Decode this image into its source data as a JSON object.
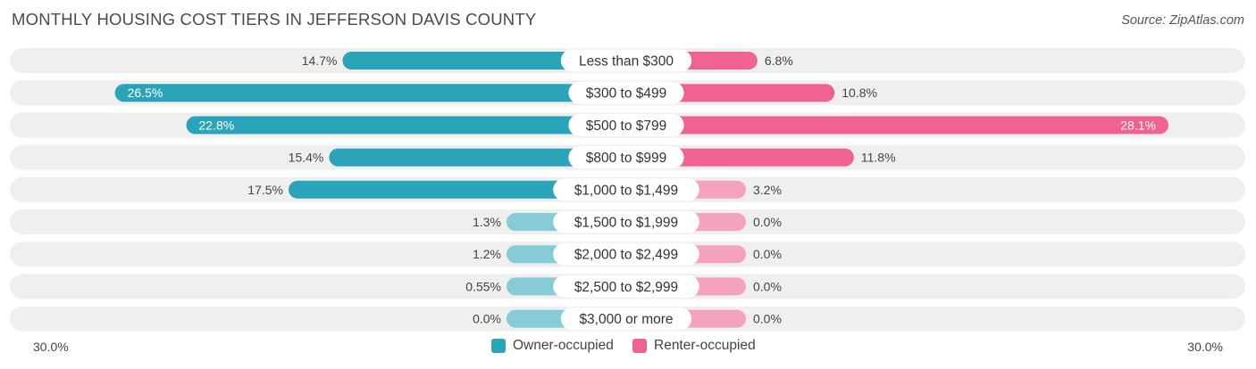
{
  "header": {
    "title": "MONTHLY HOUSING COST TIERS IN JEFFERSON DAVIS COUNTY",
    "source": "Source: ZipAtlas.com"
  },
  "colors": {
    "owner": "#2aa4b8",
    "owner_light": "#86cbd6",
    "renter": "#f0628f",
    "renter_light": "#f5a2bd",
    "row_bg": "#efefef"
  },
  "chart_data": {
    "type": "bar",
    "orientation": "horizontal-diverging",
    "title": "MONTHLY HOUSING COST TIERS IN JEFFERSON DAVIS COUNTY",
    "categories": [
      "Less than $300",
      "$300 to $499",
      "$500 to $799",
      "$800 to $999",
      "$1,000 to $1,499",
      "$1,500 to $1,999",
      "$2,000 to $2,499",
      "$2,500 to $2,999",
      "$3,000 or more"
    ],
    "series": [
      {
        "name": "Owner-occupied",
        "values": [
          14.7,
          26.5,
          22.8,
          15.4,
          17.5,
          1.3,
          1.2,
          0.55,
          0.0
        ],
        "labels": [
          "14.7%",
          "26.5%",
          "22.8%",
          "15.4%",
          "17.5%",
          "1.3%",
          "1.2%",
          "0.55%",
          "0.0%"
        ]
      },
      {
        "name": "Renter-occupied",
        "values": [
          6.8,
          10.8,
          28.1,
          11.8,
          3.2,
          0.0,
          0.0,
          0.0,
          0.0
        ],
        "labels": [
          "6.8%",
          "10.8%",
          "28.1%",
          "11.8%",
          "3.2%",
          "0.0%",
          "0.0%",
          "0.0%",
          "0.0%"
        ]
      }
    ],
    "xlim": [
      -30,
      30
    ],
    "axis_labels": {
      "left": "30.0%",
      "right": "30.0%"
    },
    "legend_position": "bottom-center"
  }
}
